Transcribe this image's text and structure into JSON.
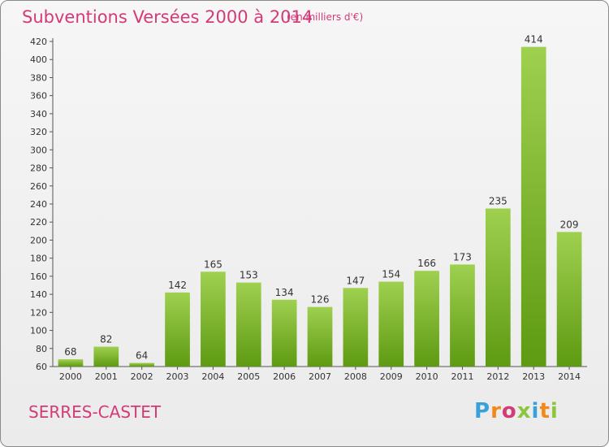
{
  "header": {
    "title": "Subventions Versées 2000 à 2014",
    "subtitle": "(en milliers d'€)"
  },
  "footer": {
    "commune": "SERRES-CASTET",
    "logo_text": "Proxiti"
  },
  "colors": {
    "accent": "#d43a78",
    "bar_top": "#9fd050",
    "bar_bottom": "#5e9a12",
    "logo": [
      "#3aa0d8",
      "#f08a1c",
      "#d43a78",
      "#8cc63e",
      "#3aa0d8",
      "#f08a1c",
      "#8cc63e"
    ]
  },
  "chart_data": {
    "type": "bar",
    "categories": [
      "2000",
      "2001",
      "2002",
      "2003",
      "2004",
      "2005",
      "2006",
      "2007",
      "2008",
      "2009",
      "2010",
      "2011",
      "2012",
      "2013",
      "2014"
    ],
    "values": [
      68,
      82,
      64,
      142,
      165,
      153,
      134,
      126,
      147,
      154,
      166,
      173,
      235,
      414,
      209
    ],
    "title": "Subventions Versées 2000 à 2014",
    "subtitle": "(en milliers d'€)",
    "xlabel": "",
    "ylabel": "",
    "ylim": [
      60,
      420
    ],
    "yticks": [
      60,
      80,
      100,
      120,
      140,
      160,
      180,
      200,
      220,
      240,
      260,
      280,
      300,
      320,
      340,
      360,
      380,
      400,
      420
    ],
    "grid": false,
    "legend": "none"
  }
}
